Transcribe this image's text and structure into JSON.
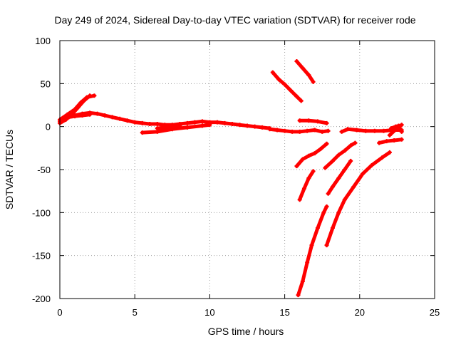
{
  "chart_data": {
    "type": "scatter",
    "title": "Day 249 of 2024, Sidereal Day-to-day VTEC variation (SDTVAR) for receiver rode",
    "xlabel": "GPS time / hours",
    "ylabel": "SDTVAR / TECUs",
    "xlim": [
      0,
      25
    ],
    "ylim": [
      -200,
      100
    ],
    "xticks": [
      0,
      5,
      10,
      15,
      20,
      25
    ],
    "yticks": [
      -200,
      -150,
      -100,
      -50,
      0,
      50,
      100
    ],
    "x_tick_labels": [
      "0",
      "5",
      "10",
      "15",
      "20",
      "25"
    ],
    "y_tick_labels": [
      "-200",
      "-150",
      "-100",
      "-50",
      "0",
      "50",
      "100"
    ],
    "grid": true,
    "legend": "none",
    "marker_color": "#ff0000",
    "series": [
      {
        "points": [
          [
            0,
            6
          ],
          [
            0.5,
            11
          ],
          [
            1,
            13
          ],
          [
            1.5,
            15
          ],
          [
            2,
            16
          ],
          [
            2.5,
            15
          ],
          [
            3,
            13
          ],
          [
            3.5,
            11
          ],
          [
            4,
            9
          ],
          [
            4.5,
            7
          ],
          [
            5,
            5
          ],
          [
            5.5,
            4
          ],
          [
            6,
            3
          ],
          [
            6.5,
            3
          ],
          [
            7,
            2
          ],
          [
            7.5,
            2
          ],
          [
            8,
            3
          ],
          [
            8.5,
            4
          ],
          [
            9,
            5
          ],
          [
            9.5,
            6
          ],
          [
            10,
            5
          ],
          [
            10.5,
            5
          ],
          [
            11,
            4
          ],
          [
            11.5,
            3
          ],
          [
            12,
            2
          ],
          [
            12.5,
            1
          ],
          [
            13,
            0
          ],
          [
            13.5,
            -1
          ],
          [
            14,
            -2
          ]
        ]
      },
      {
        "points": [
          [
            0,
            4
          ],
          [
            0.4,
            8
          ],
          [
            0.8,
            14
          ],
          [
            1.2,
            22
          ],
          [
            1.6,
            30
          ],
          [
            2,
            36
          ]
        ]
      },
      {
        "points": [
          [
            0,
            8
          ],
          [
            0.5,
            14
          ],
          [
            1,
            20
          ],
          [
            1.4,
            28
          ],
          [
            1.8,
            34
          ],
          [
            2.3,
            36
          ]
        ]
      },
      {
        "points": [
          [
            0.2,
            10
          ],
          [
            0.6,
            11
          ],
          [
            1,
            12
          ],
          [
            1.5,
            13
          ],
          [
            2,
            14
          ]
        ]
      },
      {
        "points": [
          [
            5.5,
            -7
          ],
          [
            6.5,
            -6
          ],
          [
            7.5,
            -3
          ],
          [
            8.5,
            -1
          ],
          [
            9.5,
            1
          ],
          [
            10,
            2
          ]
        ]
      },
      {
        "points": [
          [
            6.5,
            -2
          ],
          [
            7,
            -1
          ],
          [
            7.5,
            0
          ],
          [
            8,
            1
          ]
        ]
      },
      {
        "points": [
          [
            14,
            -3
          ],
          [
            14.5,
            -4
          ],
          [
            15,
            -5
          ],
          [
            15.5,
            -6
          ],
          [
            16,
            -6
          ],
          [
            16.5,
            -5
          ],
          [
            17,
            -4
          ],
          [
            17.5,
            -6
          ],
          [
            17.9,
            -5
          ]
        ]
      },
      {
        "points": [
          [
            14.2,
            63
          ],
          [
            14.6,
            55
          ],
          [
            15,
            49
          ],
          [
            15.4,
            42
          ],
          [
            15.8,
            35
          ],
          [
            16.1,
            30
          ]
        ]
      },
      {
        "points": [
          [
            15.8,
            76
          ],
          [
            16.2,
            68
          ],
          [
            16.6,
            60
          ],
          [
            16.9,
            52
          ]
        ]
      },
      {
        "points": [
          [
            16,
            7
          ],
          [
            16.6,
            7
          ],
          [
            17.2,
            6
          ],
          [
            17.8,
            4
          ]
        ]
      },
      {
        "points": [
          [
            15.8,
            -46
          ],
          [
            16.2,
            -38
          ],
          [
            16.6,
            -34
          ],
          [
            17,
            -31
          ],
          [
            17.4,
            -26
          ],
          [
            17.8,
            -20
          ]
        ]
      },
      {
        "points": [
          [
            16,
            -85
          ],
          [
            16.3,
            -72
          ],
          [
            16.6,
            -60
          ],
          [
            16.9,
            -52
          ]
        ]
      },
      {
        "points": [
          [
            15.9,
            -196
          ],
          [
            16.2,
            -180
          ],
          [
            16.5,
            -158
          ],
          [
            16.8,
            -138
          ],
          [
            17.2,
            -118
          ],
          [
            17.6,
            -100
          ],
          [
            17.8,
            -93
          ]
        ]
      },
      {
        "points": [
          [
            17.7,
            -48
          ],
          [
            18.2,
            -40
          ],
          [
            18.6,
            -33
          ],
          [
            19,
            -28
          ],
          [
            19.4,
            -22
          ],
          [
            19.7,
            -19
          ]
        ]
      },
      {
        "points": [
          [
            17.9,
            -78
          ],
          [
            18.2,
            -70
          ],
          [
            18.6,
            -60
          ],
          [
            19,
            -50
          ],
          [
            19.4,
            -40
          ]
        ]
      },
      {
        "points": [
          [
            17.8,
            -138
          ],
          [
            18.2,
            -118
          ],
          [
            18.6,
            -100
          ],
          [
            19,
            -85
          ],
          [
            19.6,
            -70
          ],
          [
            20.2,
            -55
          ],
          [
            20.8,
            -45
          ],
          [
            21.5,
            -36
          ],
          [
            22,
            -30
          ]
        ]
      },
      {
        "points": [
          [
            18.8,
            -6
          ],
          [
            19.2,
            -3
          ],
          [
            19.8,
            -4
          ],
          [
            20.4,
            -5
          ],
          [
            21,
            -5
          ],
          [
            21.6,
            -5
          ],
          [
            22.2,
            -4
          ],
          [
            22.8,
            -4
          ]
        ]
      },
      {
        "points": [
          [
            21.3,
            -19
          ],
          [
            21.8,
            -17
          ],
          [
            22.3,
            -16
          ],
          [
            22.8,
            -15
          ]
        ]
      },
      {
        "points": [
          [
            22,
            -10
          ],
          [
            22.3,
            -5
          ],
          [
            22.5,
            -1
          ],
          [
            22.8,
            2
          ]
        ]
      },
      {
        "points": [
          [
            22.1,
            -2
          ],
          [
            22.4,
            0
          ],
          [
            22.6,
            1
          ],
          [
            22.8,
            -6
          ]
        ]
      }
    ]
  }
}
